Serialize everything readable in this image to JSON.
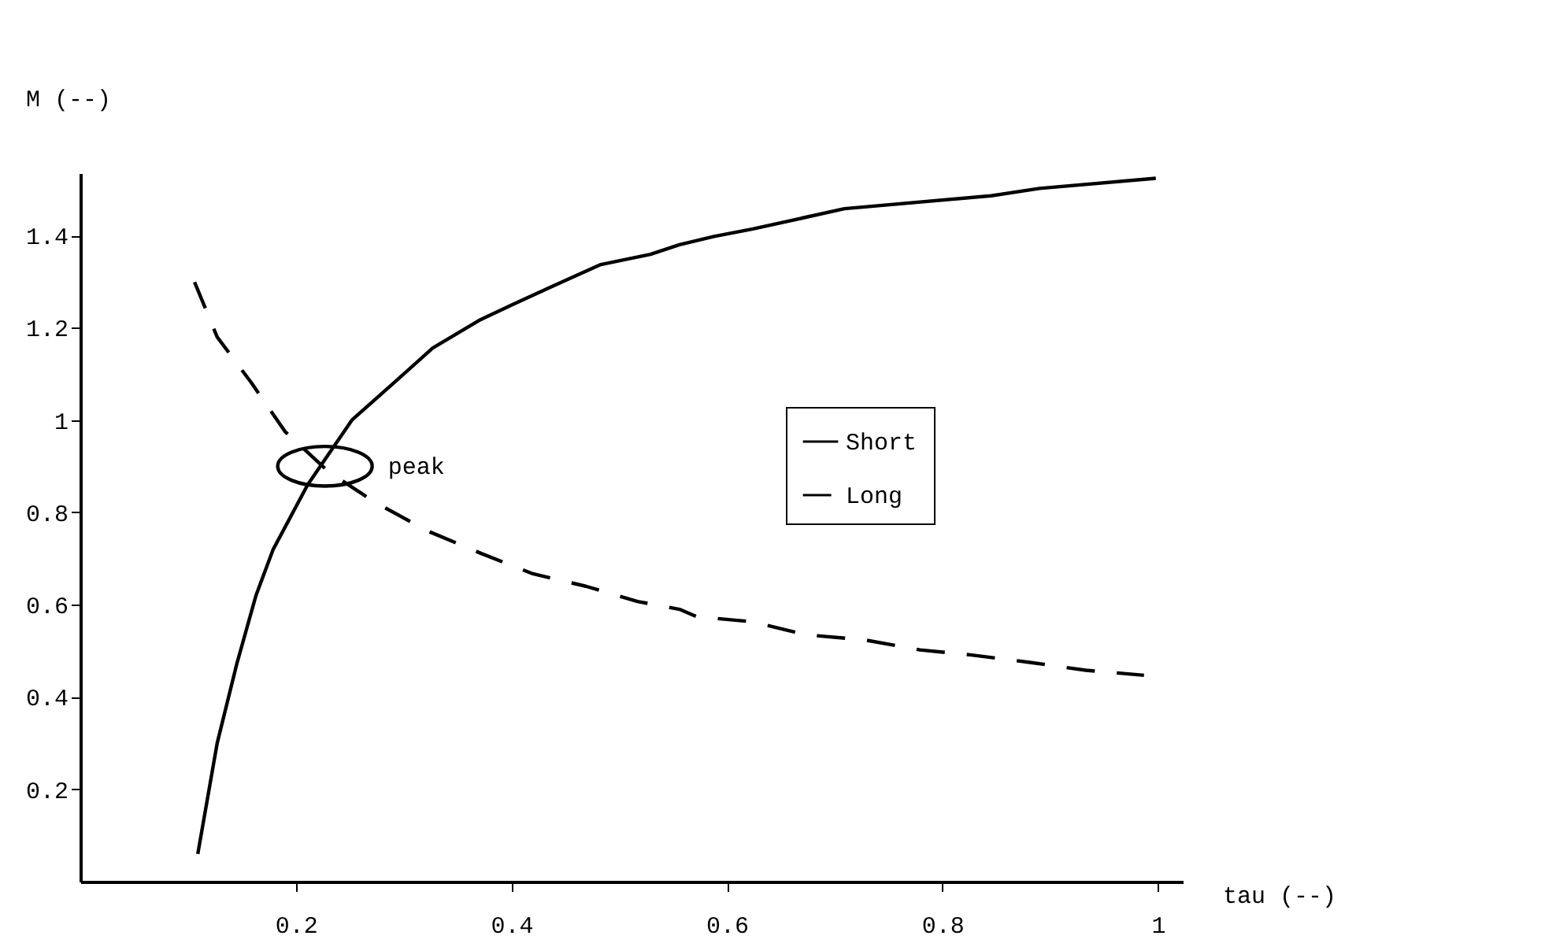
{
  "chart_data": {
    "type": "line",
    "xlabel": "tau (--)",
    "ylabel": "M (--)",
    "xlim": [
      0,
      1.023
    ],
    "ylim": [
      0,
      1.535
    ],
    "xticks": [
      0.2,
      0.4,
      0.6,
      0.8,
      1
    ],
    "yticks": [
      0.2,
      0.4,
      0.6,
      0.8,
      1,
      1.2,
      1.4
    ],
    "grid": false,
    "legend": "right",
    "annotations": [
      {
        "text": "peak",
        "x": 0.227,
        "y": 0.9
      }
    ],
    "series": [
      {
        "name": "Short",
        "color": "#000000",
        "line_style": "solid",
        "x": [
          0.109,
          0.127,
          0.145,
          0.163,
          0.179,
          0.211,
          0.252,
          0.293,
          0.327,
          0.37,
          0.401,
          0.438,
          0.483,
          0.529,
          0.556,
          0.588,
          0.624,
          0.709,
          0.845,
          0.89,
          0.998
        ],
        "values": [
          0.06,
          0.3,
          0.47,
          0.62,
          0.72,
          0.86,
          1.0,
          1.085,
          1.156,
          1.216,
          1.25,
          1.29,
          1.337,
          1.359,
          1.38,
          1.398,
          1.414,
          1.458,
          1.486,
          1.502,
          1.524
        ]
      },
      {
        "name": "Long",
        "color": "#000000",
        "line_style": "dashed",
        "x": [
          0.106,
          0.127,
          0.159,
          0.19,
          0.231,
          0.274,
          0.322,
          0.372,
          0.42,
          0.469,
          0.517,
          0.556,
          0.572,
          0.624,
          0.673,
          0.727,
          0.779,
          0.827,
          0.881,
          0.933,
          0.987
        ],
        "values": [
          1.299,
          1.18,
          1.08,
          0.975,
          0.887,
          0.821,
          0.76,
          0.711,
          0.667,
          0.64,
          0.607,
          0.59,
          0.574,
          0.563,
          0.535,
          0.524,
          0.502,
          0.491,
          0.475,
          0.458,
          0.447
        ]
      }
    ]
  }
}
